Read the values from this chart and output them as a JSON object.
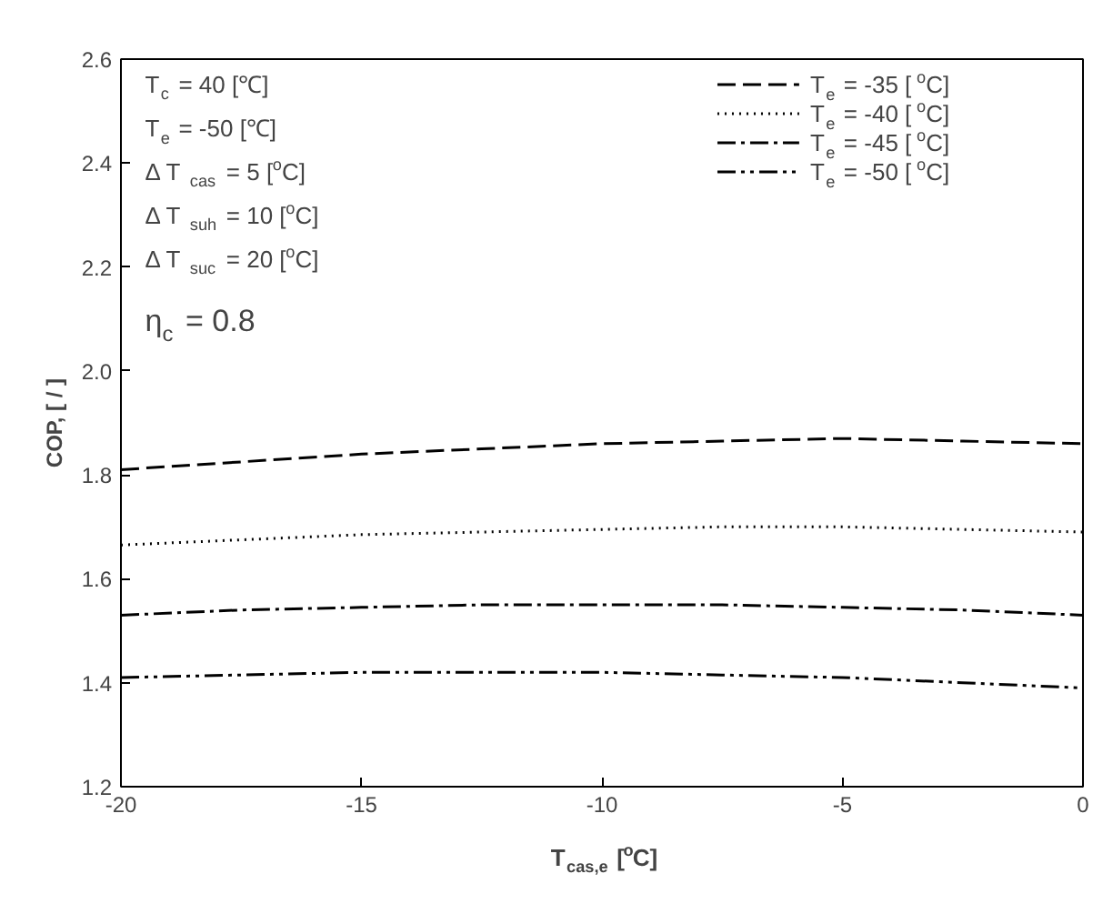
{
  "chart_data": {
    "type": "line",
    "xlabel": "T$_{cas,e}$ [$^{o}$C]",
    "ylabel": "COP, [ / ]",
    "x": [
      -20,
      -17.5,
      -15,
      -12.5,
      -10,
      -7.5,
      -5,
      -2.5,
      0
    ],
    "xlim": [
      -20,
      0
    ],
    "xticks": [
      -20,
      -15,
      -10,
      -5,
      0
    ],
    "ylim": [
      1.2,
      2.6
    ],
    "yticks": [
      1.2,
      1.4,
      1.6,
      1.8,
      {
        "value": 2,
        "label": "2.0"
      },
      2.2,
      2.4,
      2.6
    ],
    "grid": false,
    "legend": "top right",
    "marker": "none",
    "series": [
      {
        "name": "T$_{e}$ = -35 [$^{o}$C]",
        "color": "#000000",
        "line_style": "dashed",
        "values": [
          1.81,
          1.825,
          1.84,
          1.85,
          1.86,
          1.865,
          1.87,
          1.865,
          1.86
        ]
      },
      {
        "name": "T$_{e}$ = -40 [$^{o}$C]",
        "color": "#000000",
        "line_style": "dotted",
        "values": [
          1.665,
          1.675,
          1.685,
          1.69,
          1.695,
          1.7,
          1.7,
          1.695,
          1.69
        ]
      },
      {
        "name": "T$_{e}$ = -45 [$^{o}$C]",
        "color": "#000000",
        "line_style": "dashdot",
        "values": [
          1.53,
          1.54,
          1.545,
          1.55,
          1.55,
          1.55,
          1.545,
          1.54,
          1.53
        ]
      },
      {
        "name": "T$_{e}$ = -50 [$^{o}$C]",
        "color": "#000000",
        "line_style": "dashdotdot",
        "values": [
          1.41,
          1.415,
          1.42,
          1.42,
          1.42,
          1.415,
          1.41,
          1.4,
          1.39
        ]
      }
    ],
    "annotations": [
      "T$_{c}$ = 40 [℃]",
      "T$_{e}$ = -50 [℃]",
      "Δ  T$_{cas}$ = 5 [$^{o}$C]",
      "Δ  T$_{suh}$ = 10 [$^{o}$C]",
      "Δ  T$_{suc}$ = 20 [$^{o}$C]",
      "η$_{c}$ = 0.8"
    ]
  }
}
